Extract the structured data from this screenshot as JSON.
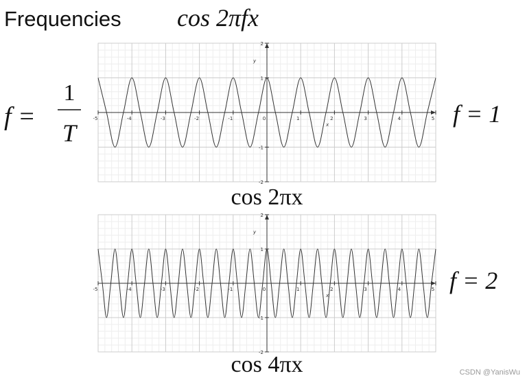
{
  "title": "Frequencies",
  "formula": "cos 2πfx",
  "general_note": {
    "lhs": "f =",
    "numerator": "1",
    "denominator": "T"
  },
  "watermark": "CSDN @YanisWu",
  "chart_data": [
    {
      "type": "line",
      "title": "cos 2πx",
      "annotation": "f = 1",
      "x_label": "x",
      "y_label": "y",
      "color": "#333333",
      "grid": true,
      "xlim": [
        -5,
        5
      ],
      "ylim": [
        -2,
        2
      ],
      "xticks": [
        -5,
        -4,
        -3,
        -2,
        -1,
        0,
        1,
        2,
        3,
        4,
        5
      ],
      "yticks": [
        -2,
        -1,
        1,
        2
      ],
      "x": [
        -5,
        -4.75,
        -4.5,
        -4.25,
        -4,
        -3.75,
        -3.5,
        -3.25,
        -3,
        -2.75,
        -2.5,
        -2.25,
        -2,
        -1.75,
        -1.5,
        -1.25,
        -1,
        -0.75,
        -0.5,
        -0.25,
        0,
        0.25,
        0.5,
        0.75,
        1,
        1.25,
        1.5,
        1.75,
        2,
        2.25,
        2.5,
        2.75,
        3,
        3.25,
        3.5,
        3.75,
        4,
        4.25,
        4.5,
        4.75,
        5
      ],
      "values": [
        1,
        0,
        -1,
        0,
        1,
        0,
        -1,
        0,
        1,
        0,
        -1,
        0,
        1,
        0,
        -1,
        0,
        1,
        0,
        -1,
        0,
        1,
        0,
        -1,
        0,
        1,
        0,
        -1,
        0,
        1,
        0,
        -1,
        0,
        1,
        0,
        -1,
        0,
        1,
        0,
        -1,
        0,
        1
      ]
    },
    {
      "type": "line",
      "title": "cos 4πx",
      "annotation": "f = 2",
      "x_label": "x",
      "y_label": "y",
      "color": "#333333",
      "grid": true,
      "xlim": [
        -5,
        5
      ],
      "ylim": [
        -2,
        2
      ],
      "xticks": [
        -5,
        -4,
        -3,
        -2,
        -1,
        0,
        1,
        2,
        3,
        4,
        5
      ],
      "yticks": [
        -2,
        -1,
        1,
        2
      ],
      "x": [
        -5,
        -4.875,
        -4.75,
        -4.625,
        -4.5,
        -4.375,
        -4.25,
        -4.125,
        -4,
        -3.875,
        -3.75,
        -3.625,
        -3.5,
        -3.375,
        -3.25,
        -3.125,
        -3,
        -2.875,
        -2.75,
        -2.625,
        -2.5,
        -2.375,
        -2.25,
        -2.125,
        -2,
        -1.875,
        -1.75,
        -1.625,
        -1.5,
        -1.375,
        -1.25,
        -1.125,
        -1,
        -0.875,
        -0.75,
        -0.625,
        -0.5,
        -0.375,
        -0.25,
        -0.125,
        0,
        0.125,
        0.25,
        0.375,
        0.5,
        0.625,
        0.75,
        0.875,
        1,
        1.125,
        1.25,
        1.375,
        1.5,
        1.625,
        1.75,
        1.875,
        2,
        2.125,
        2.25,
        2.375,
        2.5,
        2.625,
        2.75,
        2.875,
        3,
        3.125,
        3.25,
        3.375,
        3.5,
        3.625,
        3.75,
        3.875,
        4,
        4.125,
        4.25,
        4.375,
        4.5,
        4.625,
        4.75,
        4.875,
        5
      ],
      "values": [
        1,
        0,
        -1,
        0,
        1,
        0,
        -1,
        0,
        1,
        0,
        -1,
        0,
        1,
        0,
        -1,
        0,
        1,
        0,
        -1,
        0,
        1,
        0,
        -1,
        0,
        1,
        0,
        -1,
        0,
        1,
        0,
        -1,
        0,
        1,
        0,
        -1,
        0,
        1,
        0,
        -1,
        0,
        1,
        0,
        -1,
        0,
        1,
        0,
        -1,
        0,
        1,
        0,
        -1,
        0,
        1,
        0,
        -1,
        0,
        1,
        0,
        -1,
        0,
        1,
        0,
        -1,
        0,
        1,
        0,
        -1,
        0,
        1,
        0,
        -1,
        0,
        1,
        0,
        -1,
        0,
        1,
        0,
        -1,
        0,
        1
      ]
    }
  ]
}
